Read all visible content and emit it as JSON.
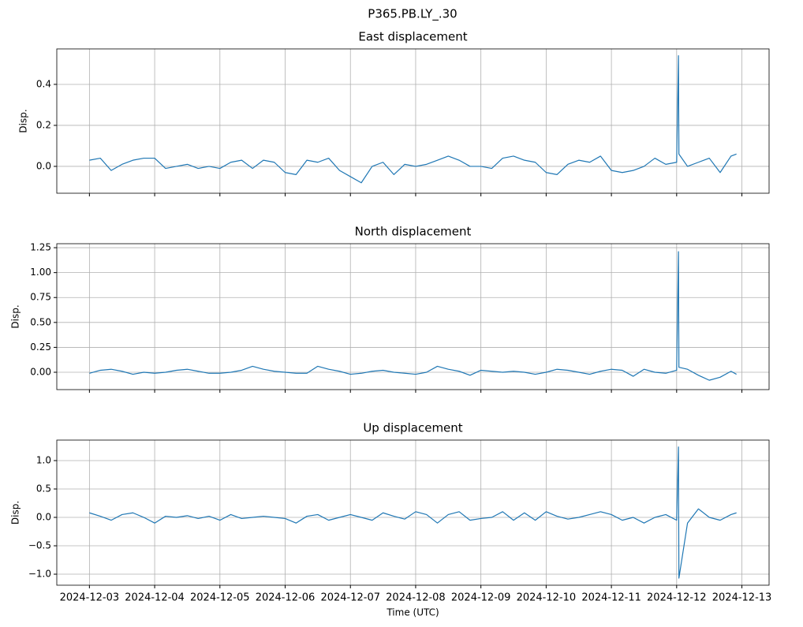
{
  "title": "P365.PB.LY_.30",
  "chart_data": [
    {
      "type": "line",
      "title": "East displacement",
      "ylabel": "Disp.",
      "color": "#1f77b4",
      "grid": true,
      "x": [
        "2024-12-03 00:00",
        "2024-12-03 04:00",
        "2024-12-03 08:00",
        "2024-12-03 12:00",
        "2024-12-03 16:00",
        "2024-12-03 20:00",
        "2024-12-04 00:00",
        "2024-12-04 04:00",
        "2024-12-04 08:00",
        "2024-12-04 12:00",
        "2024-12-04 16:00",
        "2024-12-04 20:00",
        "2024-12-05 00:00",
        "2024-12-05 04:00",
        "2024-12-05 08:00",
        "2024-12-05 12:00",
        "2024-12-05 16:00",
        "2024-12-05 20:00",
        "2024-12-06 00:00",
        "2024-12-06 04:00",
        "2024-12-06 08:00",
        "2024-12-06 12:00",
        "2024-12-06 16:00",
        "2024-12-06 20:00",
        "2024-12-07 00:00",
        "2024-12-07 04:00",
        "2024-12-07 08:00",
        "2024-12-07 12:00",
        "2024-12-07 16:00",
        "2024-12-07 20:00",
        "2024-12-08 00:00",
        "2024-12-08 04:00",
        "2024-12-08 08:00",
        "2024-12-08 12:00",
        "2024-12-08 16:00",
        "2024-12-08 20:00",
        "2024-12-09 00:00",
        "2024-12-09 04:00",
        "2024-12-09 08:00",
        "2024-12-09 12:00",
        "2024-12-09 16:00",
        "2024-12-09 20:00",
        "2024-12-10 00:00",
        "2024-12-10 04:00",
        "2024-12-10 08:00",
        "2024-12-10 12:00",
        "2024-12-10 16:00",
        "2024-12-10 20:00",
        "2024-12-11 00:00",
        "2024-12-11 04:00",
        "2024-12-11 08:00",
        "2024-12-11 12:00",
        "2024-12-11 16:00",
        "2024-12-11 20:00",
        "2024-12-12 00:00",
        "2024-12-12 00:40",
        "2024-12-12 00:50",
        "2024-12-12 04:00",
        "2024-12-12 08:00",
        "2024-12-12 12:00",
        "2024-12-12 16:00",
        "2024-12-12 20:00",
        "2024-12-12 22:00"
      ],
      "values": [
        0.03,
        0.04,
        -0.02,
        0.01,
        0.03,
        0.04,
        0.04,
        -0.01,
        0.0,
        0.01,
        -0.01,
        0.0,
        -0.01,
        0.02,
        0.03,
        -0.01,
        0.03,
        0.02,
        -0.03,
        -0.04,
        0.03,
        0.02,
        0.04,
        -0.02,
        -0.05,
        -0.08,
        0.0,
        0.02,
        -0.04,
        0.01,
        0.0,
        0.01,
        0.03,
        0.05,
        0.03,
        0.0,
        0.0,
        -0.01,
        0.04,
        0.05,
        0.03,
        0.02,
        -0.03,
        -0.04,
        0.01,
        0.03,
        0.02,
        0.05,
        -0.02,
        -0.03,
        -0.02,
        0.0,
        0.04,
        0.01,
        0.02,
        0.54,
        0.06,
        0.0,
        0.02,
        0.04,
        -0.03,
        0.05,
        0.06
      ],
      "xlim": [
        "2024-12-02 12:00",
        "2024-12-13 10:00"
      ],
      "xticks": [
        "2024-12-03",
        "2024-12-04",
        "2024-12-05",
        "2024-12-06",
        "2024-12-07",
        "2024-12-08",
        "2024-12-09",
        "2024-12-10",
        "2024-12-11",
        "2024-12-12",
        "2024-12-13"
      ],
      "ylim": [
        -0.131,
        0.573
      ],
      "yticks": [
        {
          "value": 0,
          "label": "0.0"
        },
        0.2,
        0.4
      ]
    },
    {
      "type": "line",
      "title": "North displacement",
      "ylabel": "Disp.",
      "color": "#1f77b4",
      "grid": true,
      "x": [
        "2024-12-03 00:00",
        "2024-12-03 04:00",
        "2024-12-03 08:00",
        "2024-12-03 12:00",
        "2024-12-03 16:00",
        "2024-12-03 20:00",
        "2024-12-04 00:00",
        "2024-12-04 04:00",
        "2024-12-04 08:00",
        "2024-12-04 12:00",
        "2024-12-04 16:00",
        "2024-12-04 20:00",
        "2024-12-05 00:00",
        "2024-12-05 04:00",
        "2024-12-05 08:00",
        "2024-12-05 12:00",
        "2024-12-05 16:00",
        "2024-12-05 20:00",
        "2024-12-06 00:00",
        "2024-12-06 04:00",
        "2024-12-06 08:00",
        "2024-12-06 12:00",
        "2024-12-06 16:00",
        "2024-12-06 20:00",
        "2024-12-07 00:00",
        "2024-12-07 04:00",
        "2024-12-07 08:00",
        "2024-12-07 12:00",
        "2024-12-07 16:00",
        "2024-12-07 20:00",
        "2024-12-08 00:00",
        "2024-12-08 04:00",
        "2024-12-08 08:00",
        "2024-12-08 12:00",
        "2024-12-08 16:00",
        "2024-12-08 20:00",
        "2024-12-09 00:00",
        "2024-12-09 04:00",
        "2024-12-09 08:00",
        "2024-12-09 12:00",
        "2024-12-09 16:00",
        "2024-12-09 20:00",
        "2024-12-10 00:00",
        "2024-12-10 04:00",
        "2024-12-10 08:00",
        "2024-12-10 12:00",
        "2024-12-10 16:00",
        "2024-12-10 20:00",
        "2024-12-11 00:00",
        "2024-12-11 04:00",
        "2024-12-11 08:00",
        "2024-12-11 12:00",
        "2024-12-11 16:00",
        "2024-12-11 20:00",
        "2024-12-12 00:00",
        "2024-12-12 00:40",
        "2024-12-12 00:50",
        "2024-12-12 04:00",
        "2024-12-12 08:00",
        "2024-12-12 12:00",
        "2024-12-12 16:00",
        "2024-12-12 20:00",
        "2024-12-12 22:00"
      ],
      "values": [
        -0.01,
        0.02,
        0.03,
        0.01,
        -0.02,
        0.0,
        -0.01,
        0.0,
        0.02,
        0.03,
        0.01,
        -0.01,
        -0.01,
        0.0,
        0.02,
        0.06,
        0.03,
        0.01,
        0.0,
        -0.01,
        -0.01,
        0.06,
        0.03,
        0.01,
        -0.02,
        -0.01,
        0.01,
        0.02,
        0.0,
        -0.01,
        -0.02,
        0.0,
        0.06,
        0.03,
        0.01,
        -0.03,
        0.02,
        0.01,
        0.0,
        0.01,
        0.0,
        -0.02,
        0.0,
        0.03,
        0.02,
        0.0,
        -0.02,
        0.01,
        0.03,
        0.02,
        -0.04,
        0.03,
        0.0,
        -0.01,
        0.02,
        1.21,
        0.05,
        0.03,
        -0.03,
        -0.08,
        -0.05,
        0.01,
        -0.02
      ],
      "xlim": [
        "2024-12-02 12:00",
        "2024-12-13 10:00"
      ],
      "xticks": [
        "2024-12-03",
        "2024-12-04",
        "2024-12-05",
        "2024-12-06",
        "2024-12-07",
        "2024-12-08",
        "2024-12-09",
        "2024-12-10",
        "2024-12-11",
        "2024-12-12",
        "2024-12-13"
      ],
      "ylim": [
        -0.174,
        1.29
      ],
      "yticks": [
        {
          "value": 0,
          "label": "0.00"
        },
        {
          "value": 0.25,
          "label": "0.25"
        },
        {
          "value": 0.5,
          "label": "0.50"
        },
        {
          "value": 0.75,
          "label": "0.75"
        },
        {
          "value": 1,
          "label": "1.00"
        },
        {
          "value": 1.25,
          "label": "1.25"
        }
      ]
    },
    {
      "type": "line",
      "title": "Up displacement",
      "ylabel": "Disp.",
      "xlabel": "Time (UTC)",
      "color": "#1f77b4",
      "grid": true,
      "x": [
        "2024-12-03 00:00",
        "2024-12-03 04:00",
        "2024-12-03 08:00",
        "2024-12-03 12:00",
        "2024-12-03 16:00",
        "2024-12-03 20:00",
        "2024-12-04 00:00",
        "2024-12-04 04:00",
        "2024-12-04 08:00",
        "2024-12-04 12:00",
        "2024-12-04 16:00",
        "2024-12-04 20:00",
        "2024-12-05 00:00",
        "2024-12-05 04:00",
        "2024-12-05 08:00",
        "2024-12-05 12:00",
        "2024-12-05 16:00",
        "2024-12-05 20:00",
        "2024-12-06 00:00",
        "2024-12-06 04:00",
        "2024-12-06 08:00",
        "2024-12-06 12:00",
        "2024-12-06 16:00",
        "2024-12-06 20:00",
        "2024-12-07 00:00",
        "2024-12-07 04:00",
        "2024-12-07 08:00",
        "2024-12-07 12:00",
        "2024-12-07 16:00",
        "2024-12-07 20:00",
        "2024-12-08 00:00",
        "2024-12-08 04:00",
        "2024-12-08 08:00",
        "2024-12-08 12:00",
        "2024-12-08 16:00",
        "2024-12-08 20:00",
        "2024-12-09 00:00",
        "2024-12-09 04:00",
        "2024-12-09 08:00",
        "2024-12-09 12:00",
        "2024-12-09 16:00",
        "2024-12-09 20:00",
        "2024-12-10 00:00",
        "2024-12-10 04:00",
        "2024-12-10 08:00",
        "2024-12-10 12:00",
        "2024-12-10 16:00",
        "2024-12-10 20:00",
        "2024-12-11 00:00",
        "2024-12-11 04:00",
        "2024-12-11 08:00",
        "2024-12-11 12:00",
        "2024-12-11 16:00",
        "2024-12-11 20:00",
        "2024-12-12 00:00",
        "2024-12-12 00:40",
        "2024-12-12 00:50",
        "2024-12-12 04:00",
        "2024-12-12 08:00",
        "2024-12-12 12:00",
        "2024-12-12 16:00",
        "2024-12-12 20:00",
        "2024-12-12 22:00"
      ],
      "values": [
        0.08,
        0.02,
        -0.05,
        0.05,
        0.08,
        0.0,
        -0.1,
        0.02,
        0.0,
        0.03,
        -0.02,
        0.02,
        -0.05,
        0.05,
        -0.02,
        0.0,
        0.02,
        0.0,
        -0.02,
        -0.1,
        0.02,
        0.05,
        -0.05,
        0.0,
        0.05,
        0.0,
        -0.05,
        0.08,
        0.02,
        -0.03,
        0.1,
        0.05,
        -0.1,
        0.05,
        0.1,
        -0.05,
        -0.02,
        0.0,
        0.1,
        -0.05,
        0.08,
        -0.05,
        0.1,
        0.02,
        -0.03,
        0.0,
        0.05,
        0.1,
        0.05,
        -0.05,
        0.0,
        -0.1,
        0.0,
        0.05,
        -0.05,
        1.24,
        -1.07,
        -0.1,
        0.15,
        0.0,
        -0.05,
        0.05,
        0.08
      ],
      "xlim": [
        "2024-12-02 12:00",
        "2024-12-13 10:00"
      ],
      "xticks": [
        "2024-12-03",
        "2024-12-04",
        "2024-12-05",
        "2024-12-06",
        "2024-12-07",
        "2024-12-08",
        "2024-12-09",
        "2024-12-10",
        "2024-12-11",
        "2024-12-12",
        "2024-12-13"
      ],
      "ylim": [
        -1.194,
        1.361
      ],
      "yticks": [
        {
          "value": -1,
          "label": "−1.0"
        },
        {
          "value": -0.5,
          "label": "−0.5"
        },
        {
          "value": 0,
          "label": "0.0"
        },
        {
          "value": 0.5,
          "label": "0.5"
        },
        {
          "value": 1,
          "label": "1.0"
        }
      ]
    }
  ]
}
